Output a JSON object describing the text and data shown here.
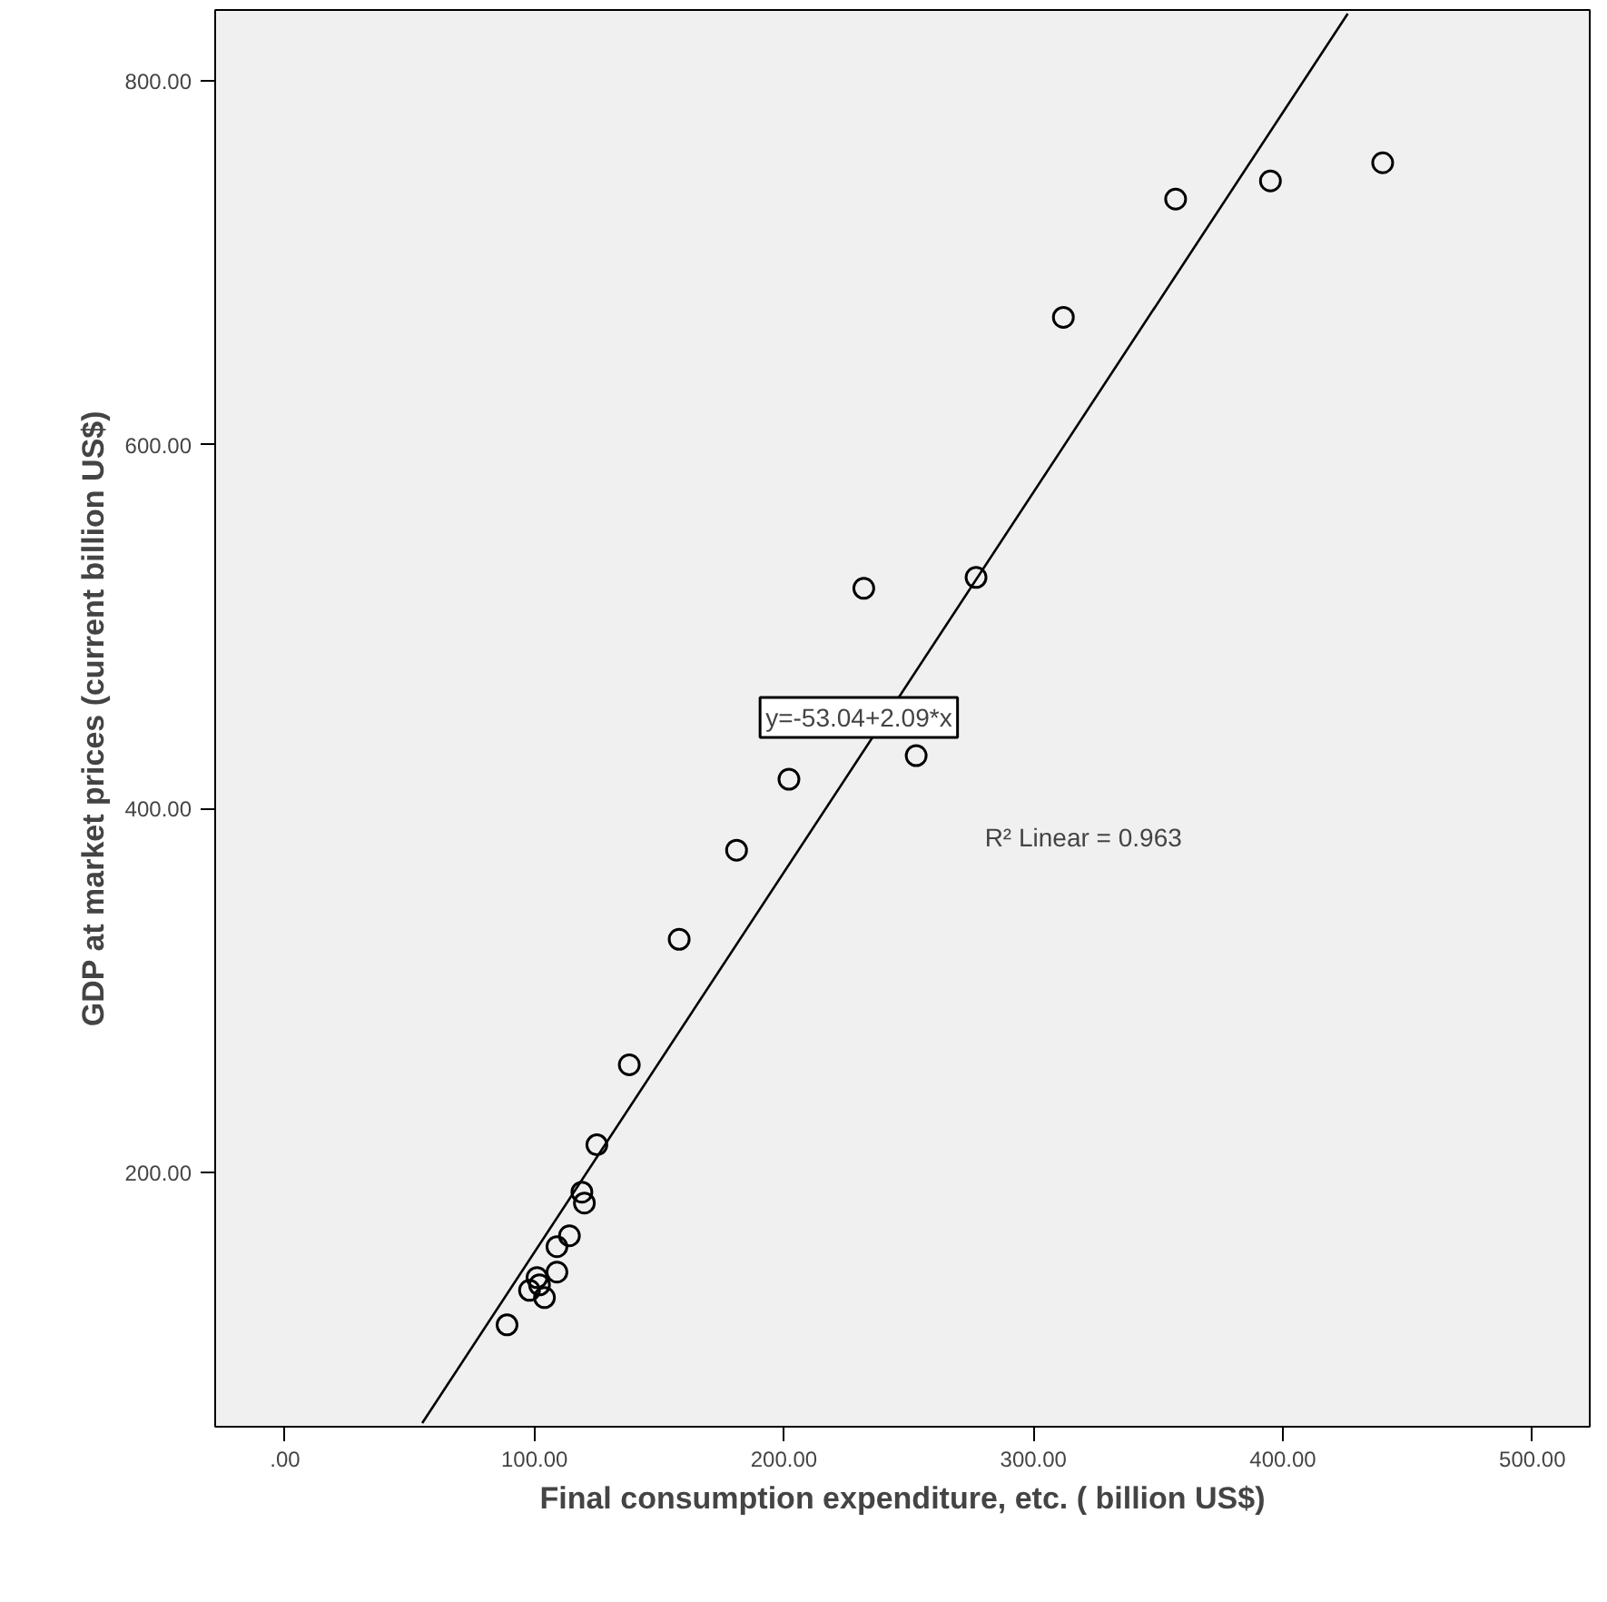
{
  "chart_data": {
    "type": "scatter",
    "xlabel": "Final consumption expenditure, etc. ( billion US$)",
    "ylabel": "GDP at market prices (current billion US$)",
    "xlim": [
      -28,
      523
    ],
    "ylim": [
      60,
      839
    ],
    "xticks": [
      {
        "value": 0,
        "label": ".00"
      },
      {
        "value": 100,
        "label": "100.00"
      },
      {
        "value": 200,
        "label": "200.00"
      },
      {
        "value": 300,
        "label": "300.00"
      },
      {
        "value": 400,
        "label": "400.00"
      },
      {
        "value": 500,
        "label": "500.00"
      }
    ],
    "yticks": [
      {
        "value": 200,
        "label": "200.00"
      },
      {
        "value": 400,
        "label": "400.00"
      },
      {
        "value": 600,
        "label": "600.00"
      },
      {
        "value": 800,
        "label": "800.00"
      }
    ],
    "grid": false,
    "marker": "circle",
    "annotations": [
      "y=-53.04+2.09*x",
      "R² Linear = 0.963"
    ],
    "series": [
      {
        "color": "#000000",
        "x": [
          440,
          395,
          357,
          312,
          277,
          232,
          253,
          202,
          181,
          158,
          138,
          125,
          119,
          120,
          114,
          109,
          109,
          101,
          102,
          98,
          104,
          89
        ],
        "values": [
          755,
          745,
          735,
          670,
          527,
          521,
          429,
          416,
          377,
          328,
          259,
          215,
          189,
          183,
          165,
          159,
          145,
          142,
          138,
          135,
          131,
          116
        ]
      },
      {
        "type": "line",
        "marker": "none",
        "color": "#000000",
        "line_style": "solid",
        "x": [
          55,
          426
        ],
        "values": [
          62,
          837
        ]
      }
    ]
  }
}
